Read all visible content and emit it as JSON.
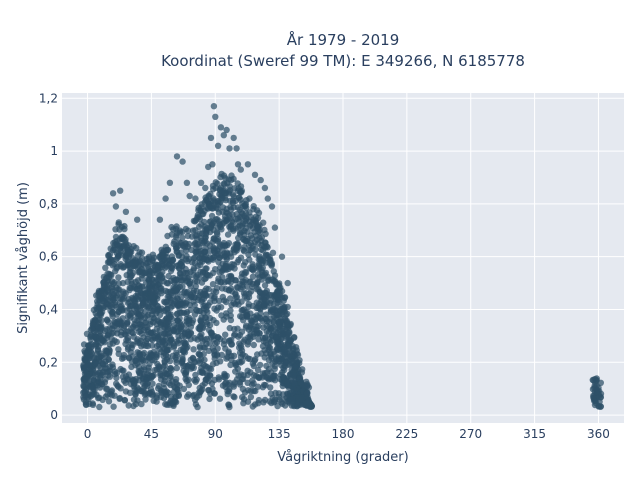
{
  "chart_data": {
    "type": "scatter",
    "title_lines": [
      "År 1979 - 2019",
      "Koordinat (Sweref 99 TM): E 349266, N 6185778"
    ],
    "xlabel": "Vågriktning (grader)",
    "ylabel": "Signifikant våghöjd (m)",
    "xlim": [
      -18,
      378
    ],
    "ylim": [
      -0.03,
      1.22
    ],
    "x_ticks": [
      0,
      45,
      90,
      135,
      180,
      225,
      270,
      315,
      360
    ],
    "x_tick_labels": [
      "0",
      "45",
      "90",
      "135",
      "180",
      "225",
      "270",
      "315",
      "360"
    ],
    "y_ticks": [
      0,
      0.2,
      0.4,
      0.6,
      0.8,
      1.0,
      1.2
    ],
    "y_tick_labels": [
      "0",
      "0,2",
      "0,4",
      "0,6",
      "0,8",
      "1",
      "1,2"
    ],
    "grid": true,
    "legend": "none",
    "marker_color": "#2e5068",
    "plot_bg": "#e5e9f0",
    "series": [
      {
        "envelope": [
          {
            "x": -3,
            "upper": 0.2
          },
          {
            "x": 0,
            "upper": 0.26
          },
          {
            "x": 5,
            "upper": 0.38
          },
          {
            "x": 10,
            "upper": 0.48
          },
          {
            "x": 15,
            "upper": 0.58
          },
          {
            "x": 20,
            "upper": 0.66
          },
          {
            "x": 25,
            "upper": 0.68
          },
          {
            "x": 30,
            "upper": 0.62
          },
          {
            "x": 35,
            "upper": 0.58
          },
          {
            "x": 40,
            "upper": 0.55
          },
          {
            "x": 45,
            "upper": 0.55
          },
          {
            "x": 50,
            "upper": 0.58
          },
          {
            "x": 55,
            "upper": 0.64
          },
          {
            "x": 60,
            "upper": 0.66
          },
          {
            "x": 65,
            "upper": 0.66
          },
          {
            "x": 70,
            "upper": 0.66
          },
          {
            "x": 75,
            "upper": 0.7
          },
          {
            "x": 80,
            "upper": 0.76
          },
          {
            "x": 85,
            "upper": 0.8
          },
          {
            "x": 90,
            "upper": 0.84
          },
          {
            "x": 95,
            "upper": 0.86
          },
          {
            "x": 100,
            "upper": 0.86
          },
          {
            "x": 105,
            "upper": 0.84
          },
          {
            "x": 110,
            "upper": 0.8
          },
          {
            "x": 115,
            "upper": 0.76
          },
          {
            "x": 120,
            "upper": 0.72
          },
          {
            "x": 125,
            "upper": 0.66
          },
          {
            "x": 130,
            "upper": 0.58
          },
          {
            "x": 135,
            "upper": 0.48
          },
          {
            "x": 140,
            "upper": 0.38
          },
          {
            "x": 145,
            "upper": 0.26
          },
          {
            "x": 150,
            "upper": 0.14
          },
          {
            "x": 155,
            "upper": 0.06
          },
          {
            "x": 158,
            "upper": 0.035
          }
        ],
        "cluster_360": {
          "x_min": 356,
          "x_max": 362,
          "y_min": 0.03,
          "y_max": 0.14
        },
        "outliers": [
          [
            18,
            0.84
          ],
          [
            23,
            0.85
          ],
          [
            20,
            0.79
          ],
          [
            22,
            0.73
          ],
          [
            27,
            0.77
          ],
          [
            35,
            0.74
          ],
          [
            51,
            0.74
          ],
          [
            55,
            0.82
          ],
          [
            58,
            0.88
          ],
          [
            63,
            0.98
          ],
          [
            67,
            0.96
          ],
          [
            70,
            0.88
          ],
          [
            72,
            0.83
          ],
          [
            76,
            0.82
          ],
          [
            80,
            0.88
          ],
          [
            83,
            0.86
          ],
          [
            85,
            0.94
          ],
          [
            87,
            1.05
          ],
          [
            88,
            0.95
          ],
          [
            89,
            1.17
          ],
          [
            90,
            1.13
          ],
          [
            92,
            1.02
          ],
          [
            94,
            1.09
          ],
          [
            96,
            1.06
          ],
          [
            98,
            1.08
          ],
          [
            100,
            1.01
          ],
          [
            103,
            1.05
          ],
          [
            105,
            1.01
          ],
          [
            106,
            0.95
          ],
          [
            108,
            0.93
          ],
          [
            113,
            0.95
          ],
          [
            118,
            0.91
          ],
          [
            122,
            0.89
          ],
          [
            125,
            0.86
          ],
          [
            127,
            0.82
          ],
          [
            130,
            0.79
          ],
          [
            132,
            0.71
          ],
          [
            137,
            0.6
          ],
          [
            141,
            0.5
          ]
        ]
      }
    ]
  }
}
